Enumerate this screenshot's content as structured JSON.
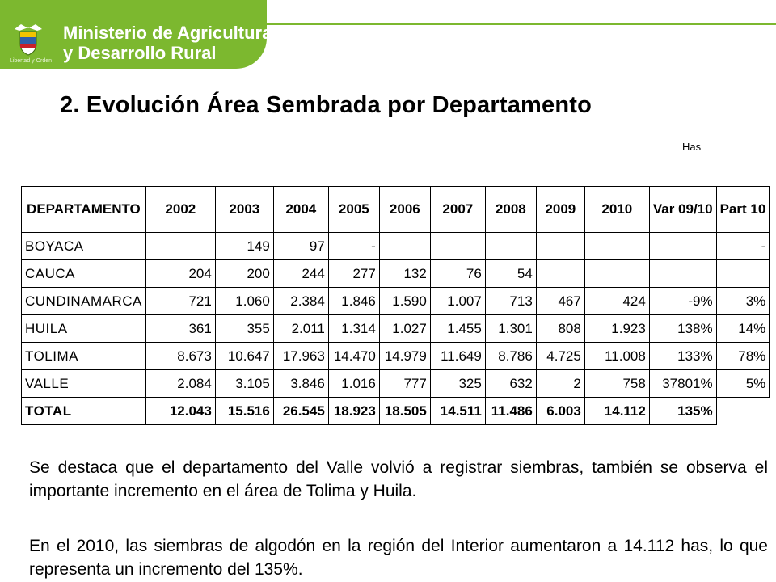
{
  "header": {
    "ministry_line1": "Ministerio de Agricultura",
    "ministry_line2": "y Desarrollo Rural",
    "crest_caption": "Libertad y Orden"
  },
  "title": "2. Evolución  Área Sembrada por Departamento",
  "units": "Has",
  "table": {
    "columns": [
      "DEPARTAMENTO",
      "2002",
      "2003",
      "2004",
      "2005",
      "2006",
      "2007",
      "2008",
      "2009",
      "2010",
      "Var 09/10",
      "Part 10"
    ],
    "rows": [
      [
        "BOYACA",
        "",
        "149",
        "97",
        "-",
        "",
        "",
        "",
        "",
        "",
        "",
        "-"
      ],
      [
        "CAUCA",
        "204",
        "200",
        "244",
        "277",
        "132",
        "76",
        "54",
        "",
        "",
        "",
        ""
      ],
      [
        "CUNDINAMARCA",
        "721",
        "1.060",
        "2.384",
        "1.846",
        "1.590",
        "1.007",
        "713",
        "467",
        "424",
        "-9%",
        "3%"
      ],
      [
        "HUILA",
        "361",
        "355",
        "2.011",
        "1.314",
        "1.027",
        "1.455",
        "1.301",
        "808",
        "1.923",
        "138%",
        "14%"
      ],
      [
        "TOLIMA",
        "8.673",
        "10.647",
        "17.963",
        "14.470",
        "14.979",
        "11.649",
        "8.786",
        "4.725",
        "11.008",
        "133%",
        "78%"
      ],
      [
        "VALLE",
        "2.084",
        "3.105",
        "3.846",
        "1.016",
        "777",
        "325",
        "632",
        "2",
        "758",
        "37801%",
        "5%"
      ]
    ],
    "total": [
      "TOTAL",
      "12.043",
      "15.516",
      "26.545",
      "18.923",
      "18.505",
      "14.511",
      "11.486",
      "6.003",
      "14.112",
      "135%",
      ""
    ]
  },
  "paragraphs": [
    "Se destaca que el departamento del Valle volvió a registrar siembras, también se observa el importante incremento en el área de Tolima y Huila.",
    "En el 2010, las siembras de algodón en la región del Interior aumentaron a 14.112 has, lo que representa un incremento del 135%."
  ],
  "colors": {
    "brand_green": "#7cb82f"
  }
}
